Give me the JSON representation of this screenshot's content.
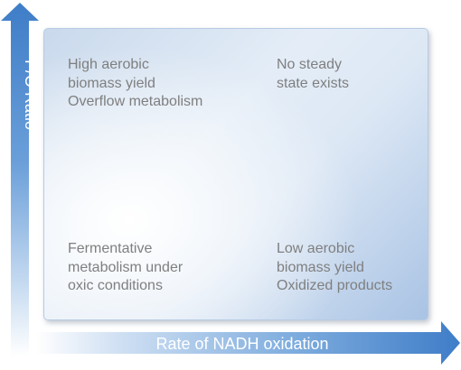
{
  "y_axis": {
    "label": "P/O Ratio"
  },
  "x_axis": {
    "label": "Rate of NADH oxidation"
  },
  "quadrants": {
    "top_left": "High aerobic\nbiomass yield\nOverflow metabolism",
    "top_right": "No steady\nstate exists",
    "bottom_left": "Fermentative\nmetabolism under\noxic conditions",
    "bottom_right": "Low aerobic\nbiomass yield\nOxidized products"
  },
  "colors": {
    "arrow": "#4a86cc",
    "text": "#7f7f7f",
    "panel": "#c9d9ec"
  }
}
